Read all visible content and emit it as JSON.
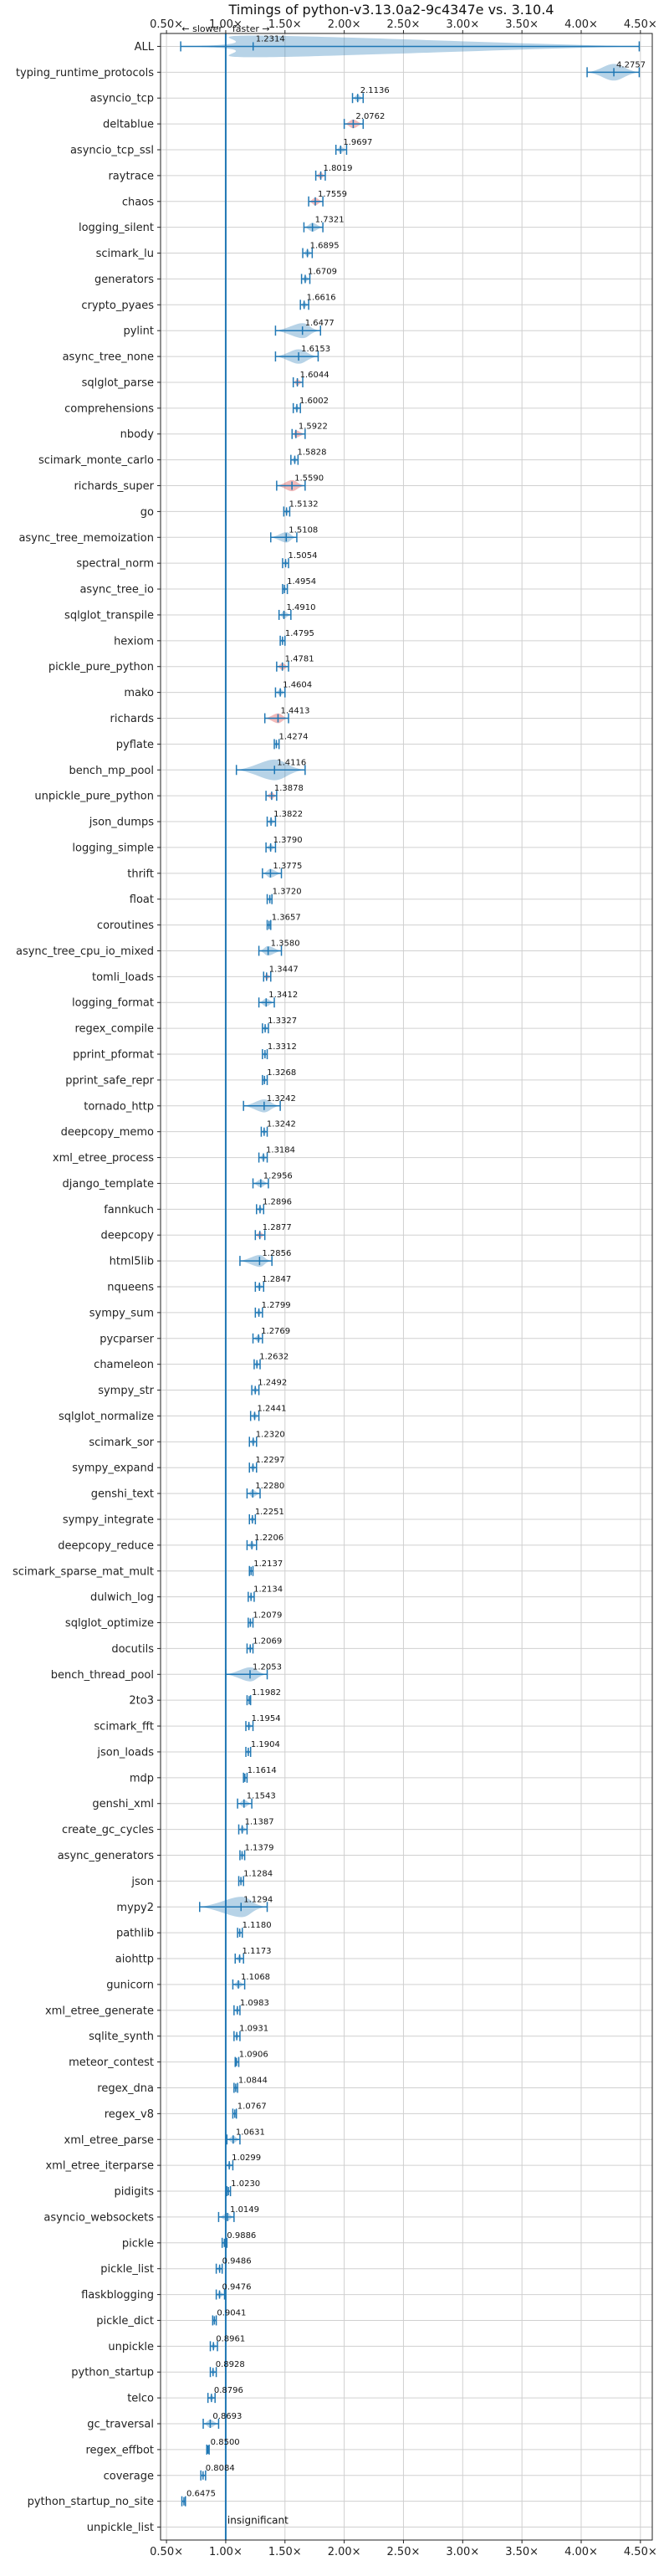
{
  "chart_data": {
    "type": "violin",
    "title": "Timings of python-v3.13.0a2-9c4347e vs. 3.10.4",
    "xlim": [
      0.45,
      4.6
    ],
    "x_ticks": [
      0.5,
      1.0,
      1.5,
      2.0,
      2.5,
      3.0,
      3.5,
      4.0,
      4.5
    ],
    "x_tick_labels": [
      "0.50×",
      "1.00×",
      "1.50×",
      "2.00×",
      "2.50×",
      "3.00×",
      "3.50×",
      "4.00×",
      "4.50×"
    ],
    "slower_label": "← slower",
    "faster_label": "faster →",
    "insignificant_label": "insignificant",
    "reference_line": 1.0,
    "grid": true,
    "colors": {
      "violin": "#1f77b4",
      "violin_significant_slower": "#d62728",
      "axis_line": "#1f77b4"
    },
    "categories": [
      "ALL",
      "typing_runtime_protocols",
      "asyncio_tcp",
      "deltablue",
      "asyncio_tcp_ssl",
      "raytrace",
      "chaos",
      "logging_silent",
      "scimark_lu",
      "generators",
      "crypto_pyaes",
      "pylint",
      "async_tree_none",
      "sqlglot_parse",
      "comprehensions",
      "nbody",
      "scimark_monte_carlo",
      "richards_super",
      "go",
      "async_tree_memoization",
      "spectral_norm",
      "async_tree_io",
      "sqlglot_transpile",
      "hexiom",
      "pickle_pure_python",
      "mako",
      "richards",
      "pyflate",
      "bench_mp_pool",
      "unpickle_pure_python",
      "json_dumps",
      "logging_simple",
      "thrift",
      "float",
      "coroutines",
      "async_tree_cpu_io_mixed",
      "tomli_loads",
      "logging_format",
      "regex_compile",
      "pprint_pformat",
      "pprint_safe_repr",
      "tornado_http",
      "deepcopy_memo",
      "xml_etree_process",
      "django_template",
      "fannkuch",
      "deepcopy",
      "html5lib",
      "nqueens",
      "sympy_sum",
      "pycparser",
      "chameleon",
      "sympy_str",
      "sqlglot_normalize",
      "scimark_sor",
      "sympy_expand",
      "genshi_text",
      "sympy_integrate",
      "deepcopy_reduce",
      "scimark_sparse_mat_mult",
      "dulwich_log",
      "sqlglot_optimize",
      "docutils",
      "bench_thread_pool",
      "2to3",
      "scimark_fft",
      "json_loads",
      "mdp",
      "genshi_xml",
      "create_gc_cycles",
      "async_generators",
      "json",
      "mypy2",
      "pathlib",
      "aiohttp",
      "gunicorn",
      "xml_etree_generate",
      "sqlite_synth",
      "meteor_contest",
      "regex_dna",
      "regex_v8",
      "xml_etree_parse",
      "xml_etree_iterparse",
      "pidigits",
      "asyncio_websockets",
      "pickle",
      "pickle_list",
      "flaskblogging",
      "pickle_dict",
      "unpickle",
      "python_startup",
      "telco",
      "gc_traversal",
      "regex_effbot",
      "coverage",
      "python_startup_no_site",
      "unpickle_list"
    ],
    "values": [
      1.2314,
      4.2757,
      2.1136,
      2.0762,
      1.9697,
      1.8019,
      1.7559,
      1.7321,
      1.6895,
      1.6709,
      1.6616,
      1.6477,
      1.6153,
      1.6044,
      1.6002,
      1.5922,
      1.5828,
      1.559,
      1.5132,
      1.5108,
      1.5054,
      1.4954,
      1.491,
      1.4795,
      1.4781,
      1.4604,
      1.4413,
      1.4274,
      1.4116,
      1.3878,
      1.3822,
      1.379,
      1.3775,
      1.372,
      1.3657,
      1.358,
      1.3447,
      1.3412,
      1.3327,
      1.3312,
      1.3268,
      1.3242,
      1.3242,
      1.3184,
      1.2956,
      1.2896,
      1.2877,
      1.2856,
      1.2847,
      1.2799,
      1.2769,
      1.2632,
      1.2492,
      1.2441,
      1.232,
      1.2297,
      1.228,
      1.2251,
      1.2206,
      1.2137,
      1.2134,
      1.2079,
      1.2069,
      1.2053,
      1.1982,
      1.1954,
      1.1904,
      1.1614,
      1.1543,
      1.1387,
      1.1379,
      1.1284,
      1.1294,
      1.118,
      1.1173,
      1.1068,
      1.0983,
      1.0931,
      1.0906,
      1.0844,
      1.0767,
      1.0631,
      1.0299,
      1.023,
      1.0149,
      0.9886,
      0.9486,
      0.9476,
      0.9041,
      0.8961,
      0.8928,
      0.8796,
      0.8693,
      0.85,
      0.8084,
      0.6475,
      null
    ],
    "value_labels": [
      "1.2314",
      "4.2757",
      "2.1136",
      "2.0762",
      "1.9697",
      "1.8019",
      "1.7559",
      "1.7321",
      "1.6895",
      "1.6709",
      "1.6616",
      "1.6477",
      "1.6153",
      "1.6044",
      "1.6002",
      "1.5922",
      "1.5828",
      "1.5590",
      "1.5132",
      "1.5108",
      "1.5054",
      "1.4954",
      "1.4910",
      "1.4795",
      "1.4781",
      "1.4604",
      "1.4413",
      "1.4274",
      "1.4116",
      "1.3878",
      "1.3822",
      "1.3790",
      "1.3775",
      "1.3720",
      "1.3657",
      "1.3580",
      "1.3447",
      "1.3412",
      "1.3327",
      "1.3312",
      "1.3268",
      "1.3242",
      "1.3242",
      "1.3184",
      "1.2956",
      "1.2896",
      "1.2877",
      "1.2856",
      "1.2847",
      "1.2799",
      "1.2769",
      "1.2632",
      "1.2492",
      "1.2441",
      "1.2320",
      "1.2297",
      "1.2280",
      "1.2251",
      "1.2206",
      "1.2137",
      "1.2134",
      "1.2079",
      "1.2069",
      "1.2053",
      "1.1982",
      "1.1954",
      "1.1904",
      "1.1614",
      "1.1543",
      "1.1387",
      "1.1379",
      "1.1284",
      "1.1294",
      "1.1180",
      "1.1173",
      "1.1068",
      "1.0983",
      "1.0931",
      "1.0906",
      "1.0844",
      "1.0767",
      "1.0631",
      "1.0299",
      "1.0230",
      "1.0149",
      "0.9886",
      "0.9486",
      "0.9476",
      "0.9041",
      "0.8961",
      "0.8928",
      "0.8796",
      "0.8693",
      "0.8500",
      "0.8084",
      "0.6475",
      ""
    ],
    "ranges": [
      [
        0.62,
        4.49
      ],
      [
        4.05,
        4.49
      ],
      [
        2.07,
        2.16
      ],
      [
        2.0,
        2.16
      ],
      [
        1.93,
        2.02
      ],
      [
        1.76,
        1.84
      ],
      [
        1.7,
        1.82
      ],
      [
        1.66,
        1.82
      ],
      [
        1.65,
        1.73
      ],
      [
        1.64,
        1.71
      ],
      [
        1.63,
        1.7
      ],
      [
        1.42,
        1.8
      ],
      [
        1.42,
        1.78
      ],
      [
        1.57,
        1.65
      ],
      [
        1.57,
        1.63
      ],
      [
        1.56,
        1.67
      ],
      [
        1.55,
        1.61
      ],
      [
        1.43,
        1.67
      ],
      [
        1.49,
        1.54
      ],
      [
        1.38,
        1.6
      ],
      [
        1.48,
        1.53
      ],
      [
        1.48,
        1.52
      ],
      [
        1.45,
        1.55
      ],
      [
        1.46,
        1.5
      ],
      [
        1.43,
        1.53
      ],
      [
        1.42,
        1.5
      ],
      [
        1.33,
        1.53
      ],
      [
        1.41,
        1.45
      ],
      [
        1.09,
        1.67
      ],
      [
        1.34,
        1.43
      ],
      [
        1.35,
        1.42
      ],
      [
        1.34,
        1.42
      ],
      [
        1.31,
        1.47
      ],
      [
        1.35,
        1.39
      ],
      [
        1.35,
        1.38
      ],
      [
        1.28,
        1.47
      ],
      [
        1.32,
        1.38
      ],
      [
        1.28,
        1.41
      ],
      [
        1.31,
        1.36
      ],
      [
        1.31,
        1.35
      ],
      [
        1.31,
        1.35
      ],
      [
        1.15,
        1.46
      ],
      [
        1.3,
        1.35
      ],
      [
        1.28,
        1.35
      ],
      [
        1.23,
        1.36
      ],
      [
        1.26,
        1.32
      ],
      [
        1.25,
        1.33
      ],
      [
        1.12,
        1.39
      ],
      [
        1.25,
        1.32
      ],
      [
        1.25,
        1.31
      ],
      [
        1.23,
        1.31
      ],
      [
        1.24,
        1.29
      ],
      [
        1.22,
        1.28
      ],
      [
        1.21,
        1.28
      ],
      [
        1.2,
        1.26
      ],
      [
        1.2,
        1.26
      ],
      [
        1.18,
        1.29
      ],
      [
        1.2,
        1.25
      ],
      [
        1.18,
        1.26
      ],
      [
        1.2,
        1.23
      ],
      [
        1.19,
        1.24
      ],
      [
        1.19,
        1.23
      ],
      [
        1.18,
        1.23
      ],
      [
        1.0,
        1.35
      ],
      [
        1.18,
        1.21
      ],
      [
        1.17,
        1.23
      ],
      [
        1.17,
        1.21
      ],
      [
        1.15,
        1.18
      ],
      [
        1.1,
        1.22
      ],
      [
        1.11,
        1.18
      ],
      [
        1.12,
        1.16
      ],
      [
        1.11,
        1.15
      ],
      [
        0.78,
        1.35
      ],
      [
        1.1,
        1.14
      ],
      [
        1.08,
        1.15
      ],
      [
        1.06,
        1.16
      ],
      [
        1.07,
        1.12
      ],
      [
        1.07,
        1.12
      ],
      [
        1.08,
        1.11
      ],
      [
        1.07,
        1.1
      ],
      [
        1.06,
        1.09
      ],
      [
        1.01,
        1.12
      ],
      [
        1.0,
        1.06
      ],
      [
        1.01,
        1.04
      ],
      [
        0.94,
        1.07
      ],
      [
        0.97,
        1.01
      ],
      [
        0.92,
        0.97
      ],
      [
        0.92,
        0.99
      ],
      [
        0.89,
        0.92
      ],
      [
        0.87,
        0.93
      ],
      [
        0.87,
        0.92
      ],
      [
        0.85,
        0.91
      ],
      [
        0.81,
        0.94
      ],
      [
        0.84,
        0.86
      ],
      [
        0.79,
        0.83
      ],
      [
        0.63,
        0.66
      ],
      null
    ],
    "significant_slower": [
      "deltablue",
      "raytrace",
      "chaos",
      "sqlglot_parse",
      "nbody",
      "richards_super",
      "pickle_pure_python",
      "richards",
      "unpickle_pure_python",
      "tomli_loads",
      "deepcopy"
    ],
    "insignificant": [
      "unpickle_list"
    ]
  }
}
